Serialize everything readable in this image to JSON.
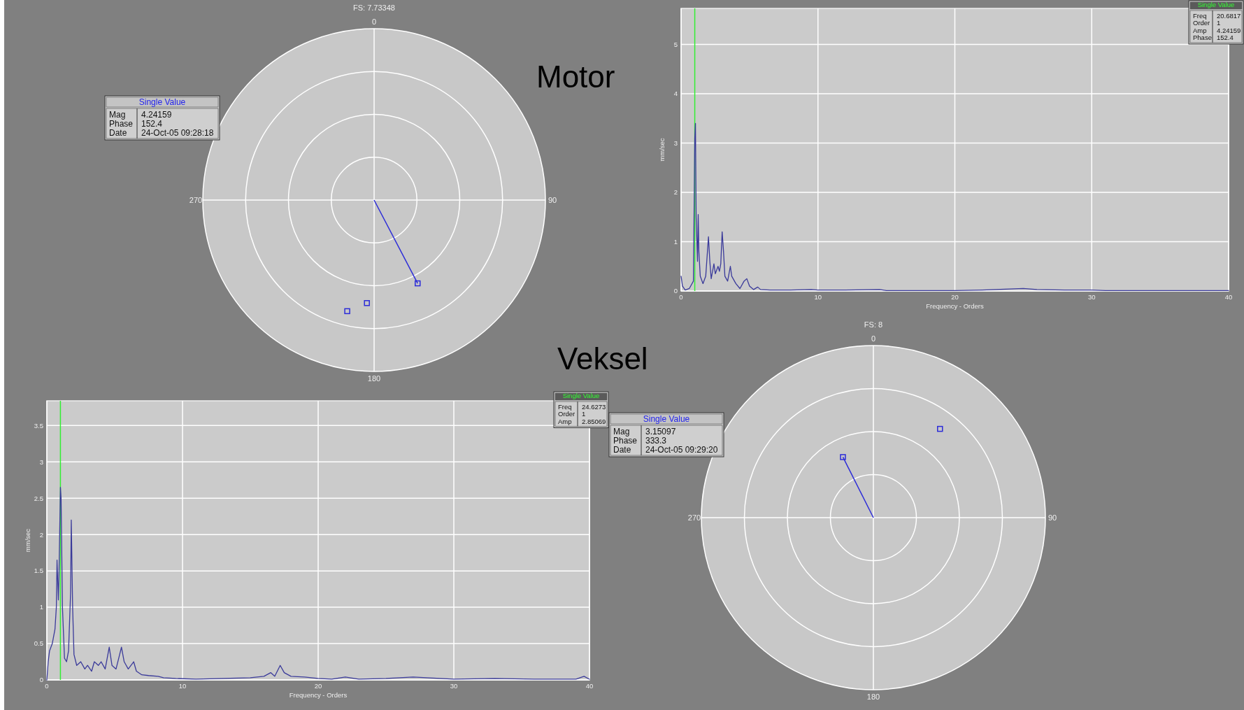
{
  "chart_data": [
    {
      "type": "other",
      "title": "FS: 7.73348",
      "subtitle": "Motor",
      "categories": [
        "0",
        "90",
        "180",
        "270"
      ],
      "annotations": [
        "Single Value",
        "Mag",
        "Phase",
        "Date",
        "4.24159",
        "152.4",
        "24-Oct-05 09:28:18"
      ]
    },
    {
      "type": "line",
      "xlabel": "Frequency - Orders",
      "ylabel": "mm/sec",
      "xlim": [
        0,
        40
      ],
      "xticks": [
        0,
        10,
        20,
        30,
        40
      ],
      "ylim": [
        0,
        5.73
      ],
      "yticks": [
        0,
        1,
        2,
        3,
        4,
        5
      ],
      "grid": true,
      "marker": "none",
      "annotations": [
        "Single Value",
        "Freq",
        "Order",
        "Amp",
        "Phase",
        "20.6817",
        "1",
        "4.24159",
        "152.4"
      ],
      "ref_lines": [
        {
          "axis": "x",
          "value": 1,
          "label": null,
          "color": "#33ee33"
        }
      ],
      "series": [
        {
          "color": "#3a3a9a",
          "x": [
            0,
            0.1,
            0.3,
            0.6,
            0.9,
            1.0,
            1.05,
            1.1,
            1.2,
            1.25,
            1.3,
            1.4,
            1.6,
            1.8,
            2.0,
            2.1,
            2.2,
            2.4,
            2.5,
            2.7,
            2.8,
            2.9,
            3.0,
            3.1,
            3.2,
            3.4,
            3.6,
            3.7,
            4.0,
            4.3,
            4.6,
            4.8,
            5.0,
            5.3,
            5.6,
            5.8,
            6.5,
            8,
            9.5,
            10,
            12,
            14.5,
            15,
            17,
            20,
            22,
            24,
            25,
            26,
            28,
            30,
            31,
            35,
            37.5,
            40
          ],
          "values": [
            0.3,
            0.1,
            0.02,
            0.05,
            0.2,
            3.1,
            3.4,
            1.5,
            0.6,
            1.55,
            0.8,
            0.3,
            0.15,
            0.3,
            1.1,
            0.6,
            0.25,
            0.55,
            0.35,
            0.5,
            0.4,
            0.55,
            1.2,
            0.8,
            0.3,
            0.2,
            0.5,
            0.3,
            0.15,
            0.05,
            0.2,
            0.25,
            0.1,
            0.03,
            0.08,
            0.03,
            0.02,
            0.02,
            0.03,
            0.02,
            0.02,
            0.03,
            0.01,
            0.01,
            0.01,
            0.02,
            0.04,
            0.05,
            0.03,
            0.02,
            0.02,
            0.01,
            0.01,
            0.01,
            0.01
          ]
        }
      ]
    },
    {
      "type": "line",
      "xlabel": "Frequency - Orders",
      "ylabel": "mm/sec",
      "xlim": [
        0,
        40
      ],
      "xticks": [
        0,
        10,
        20,
        30,
        40
      ],
      "ylim": [
        0,
        3.84
      ],
      "yticks": [
        0,
        0.5,
        1,
        1.5,
        2,
        2.5,
        3,
        3.5
      ],
      "grid": true,
      "marker": "none",
      "annotations": [
        "Single Value",
        "Freq",
        "Order",
        "Amp",
        "24.6273",
        "1",
        "2.85069"
      ],
      "ref_lines": [
        {
          "axis": "x",
          "value": 1,
          "label": null,
          "color": "#33ee33"
        }
      ],
      "series": [
        {
          "color": "#3a3a9a",
          "x": [
            0,
            0.1,
            0.2,
            0.4,
            0.6,
            0.7,
            0.75,
            0.85,
            0.9,
            1.0,
            1.05,
            1.15,
            1.3,
            1.45,
            1.6,
            1.75,
            1.8,
            1.9,
            2.0,
            2.2,
            2.5,
            2.8,
            3.0,
            3.3,
            3.5,
            3.8,
            4.0,
            4.3,
            4.6,
            4.8,
            5.1,
            5.3,
            5.5,
            5.7,
            6.0,
            6.4,
            6.6,
            7.0,
            7.5,
            8.2,
            8.6,
            9.5,
            11,
            13,
            15,
            16,
            16.5,
            16.8,
            17.2,
            17.5,
            18,
            19,
            20,
            21,
            22,
            23,
            25,
            27,
            28,
            30,
            33,
            36,
            39,
            39.6,
            40
          ],
          "values": [
            0,
            0.25,
            0.4,
            0.5,
            0.7,
            1.0,
            1.65,
            1.1,
            1.5,
            2.65,
            2.5,
            1.0,
            0.3,
            0.25,
            0.4,
            1.2,
            2.2,
            1.0,
            0.35,
            0.2,
            0.25,
            0.15,
            0.2,
            0.12,
            0.25,
            0.2,
            0.25,
            0.15,
            0.45,
            0.2,
            0.15,
            0.3,
            0.45,
            0.25,
            0.15,
            0.25,
            0.12,
            0.07,
            0.06,
            0.05,
            0.03,
            0.02,
            0.01,
            0.02,
            0.03,
            0.05,
            0.1,
            0.05,
            0.2,
            0.1,
            0.05,
            0.04,
            0.02,
            0.01,
            0.04,
            0.01,
            0.02,
            0.04,
            0.03,
            0.01,
            0.02,
            0.01,
            0.01,
            0.05,
            0.01
          ]
        }
      ]
    },
    {
      "type": "other",
      "title": "FS: 8",
      "subtitle": "Veksel",
      "categories": [
        "0",
        "90",
        "180",
        "270"
      ],
      "annotations": [
        "Single Value",
        "Mag",
        "Phase",
        "Date",
        "3.15097",
        "333.3",
        "24-Oct-05 09:29:20"
      ]
    }
  ]
}
